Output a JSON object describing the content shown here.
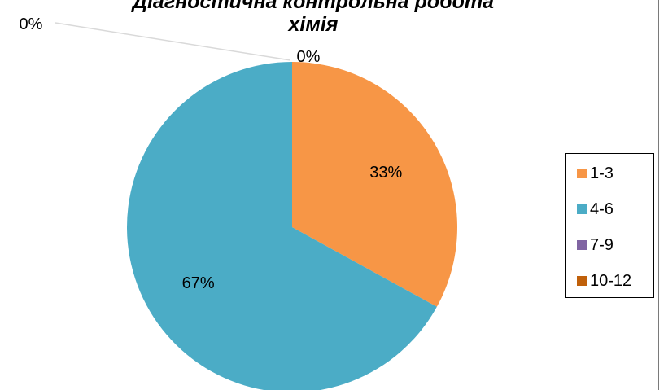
{
  "chart_data": {
    "type": "pie",
    "title": "Діагностична контрольна робота хімія",
    "title_lines": [
      "Діагностична контрольна робота",
      "хімія"
    ],
    "categories": [
      "1-3",
      "4-6",
      "7-9",
      "10-12"
    ],
    "values": [
      33,
      67,
      0,
      0
    ],
    "labels": [
      "33%",
      "67%",
      "0%",
      "0%"
    ],
    "colors": [
      "#f79646",
      "#4bacc6",
      "#8064a2",
      "#c0600a"
    ],
    "legend": {
      "position": "right",
      "entries": [
        "1-3",
        "4-6",
        "7-9",
        "10-12"
      ]
    }
  }
}
